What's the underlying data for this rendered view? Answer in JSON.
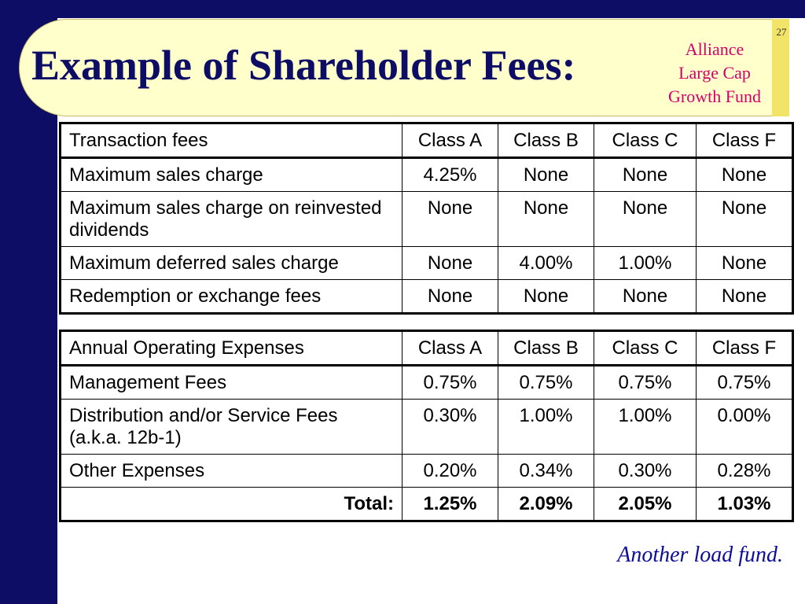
{
  "slide": {
    "title": "Example of Shareholder Fees:",
    "fund_name": [
      "Alliance",
      "Large Cap",
      "Growth Fund"
    ],
    "slide_number": "27",
    "footnote": "Another load fund."
  },
  "colors": {
    "background": "#0d0d66",
    "banner": "#ffffcc",
    "fund_name": "#d4006a",
    "footnote": "#0d0d99"
  },
  "transaction_table": {
    "header": [
      "Transaction fees",
      "Class A",
      "Class B",
      "Class C",
      "Class F"
    ],
    "rows": [
      [
        "Maximum sales charge",
        "4.25%",
        "None",
        "None",
        "None"
      ],
      [
        "Maximum sales charge on reinvested dividends",
        "None",
        "None",
        "None",
        "None"
      ],
      [
        "Maximum deferred sales charge",
        "None",
        "4.00%",
        "1.00%",
        "None"
      ],
      [
        "Redemption or exchange fees",
        "None",
        "None",
        "None",
        "None"
      ]
    ]
  },
  "operating_table": {
    "header": [
      "Annual Operating Expenses",
      "Class A",
      "Class B",
      "Class C",
      "Class F"
    ],
    "rows": [
      [
        "Management Fees",
        "0.75%",
        "0.75%",
        "0.75%",
        "0.75%"
      ],
      [
        "Distribution and/or Service Fees (a.k.a. 12b-1)",
        "0.30%",
        "1.00%",
        "1.00%",
        "0.00%"
      ],
      [
        "Other Expenses",
        "0.20%",
        "0.34%",
        "0.30%",
        "0.28%"
      ]
    ],
    "total": [
      "Total:",
      "1.25%",
      "2.09%",
      "2.05%",
      "1.03%"
    ]
  }
}
